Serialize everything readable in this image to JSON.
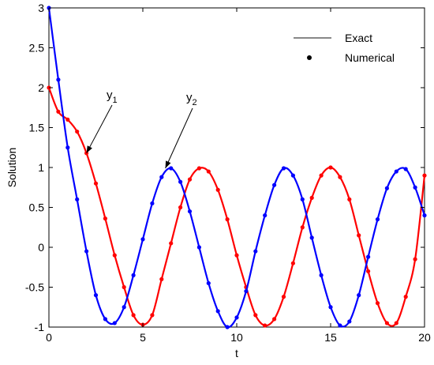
{
  "chart_data": {
    "type": "line",
    "xlabel": "t",
    "ylabel": "Solution",
    "xlim": [
      0,
      20
    ],
    "ylim": [
      -1,
      3
    ],
    "x_ticks": [
      "0",
      "5",
      "10",
      "15",
      "20"
    ],
    "y_ticks": [
      "-1",
      "-0.5",
      "0",
      "0.5",
      "1",
      "1.5",
      "2",
      "2.5",
      "3"
    ],
    "grid": false,
    "legend": {
      "placement": "top-right",
      "entries": [
        {
          "label": "Exact",
          "marker": "line"
        },
        {
          "label": "Numerical",
          "marker": "dot"
        }
      ]
    },
    "annotations": [
      {
        "text": "y",
        "subscript": "1",
        "points_to": {
          "x": 2.0,
          "y": 1.18
        }
      },
      {
        "text": "y",
        "subscript": "2",
        "points_to": {
          "x": 6.2,
          "y": 0.99
        }
      }
    ],
    "series": [
      {
        "color": "#ff0000",
        "t_start": 0,
        "t_end": 20,
        "t_step": 0.5,
        "samples": [
          [
            0,
            2.0
          ],
          [
            0.5,
            1.7
          ],
          [
            1,
            1.6
          ],
          [
            1.5,
            1.45
          ],
          [
            2,
            1.18
          ],
          [
            2.5,
            0.8
          ],
          [
            3,
            0.36
          ],
          [
            3.5,
            -0.1
          ],
          [
            4,
            -0.5
          ],
          [
            4.5,
            -0.85
          ],
          [
            5,
            -0.97
          ],
          [
            5.5,
            -0.85
          ],
          [
            6,
            -0.4
          ],
          [
            6.5,
            0.05
          ],
          [
            7,
            0.5
          ],
          [
            7.5,
            0.85
          ],
          [
            8,
            0.99
          ],
          [
            8.5,
            0.95
          ],
          [
            9,
            0.72
          ],
          [
            9.5,
            0.35
          ],
          [
            10,
            -0.1
          ],
          [
            10.5,
            -0.5
          ],
          [
            11,
            -0.85
          ],
          [
            11.5,
            -0.98
          ],
          [
            12,
            -0.9
          ],
          [
            12.5,
            -0.62
          ],
          [
            13,
            -0.2
          ],
          [
            13.5,
            0.25
          ],
          [
            14,
            0.62
          ],
          [
            14.5,
            0.9
          ],
          [
            15,
            1.0
          ],
          [
            15.5,
            0.88
          ],
          [
            16,
            0.6
          ],
          [
            16.5,
            0.15
          ],
          [
            17,
            -0.3
          ],
          [
            17.5,
            -0.7
          ],
          [
            18,
            -0.95
          ],
          [
            18.5,
            -0.95
          ],
          [
            19,
            -0.62
          ],
          [
            19.5,
            -0.15
          ],
          [
            20,
            0.9
          ]
        ]
      },
      {
        "color": "#0000ff",
        "t_start": 0,
        "t_end": 20,
        "t_step": 0.5,
        "samples": [
          [
            0,
            3.0
          ],
          [
            0.5,
            2.1
          ],
          [
            1,
            1.25
          ],
          [
            1.5,
            0.6
          ],
          [
            2,
            -0.05
          ],
          [
            2.5,
            -0.6
          ],
          [
            3,
            -0.9
          ],
          [
            3.5,
            -0.95
          ],
          [
            4,
            -0.75
          ],
          [
            4.5,
            -0.35
          ],
          [
            5,
            0.1
          ],
          [
            5.5,
            0.55
          ],
          [
            6,
            0.88
          ],
          [
            6.5,
            0.99
          ],
          [
            7,
            0.82
          ],
          [
            7.5,
            0.45
          ],
          [
            8,
            0.0
          ],
          [
            8.5,
            -0.45
          ],
          [
            9,
            -0.8
          ],
          [
            9.5,
            -1.0
          ],
          [
            10,
            -0.88
          ],
          [
            10.5,
            -0.55
          ],
          [
            11,
            -0.05
          ],
          [
            11.5,
            0.4
          ],
          [
            12,
            0.78
          ],
          [
            12.5,
            0.99
          ],
          [
            13,
            0.9
          ],
          [
            13.5,
            0.6
          ],
          [
            14,
            0.12
          ],
          [
            14.5,
            -0.35
          ],
          [
            15,
            -0.75
          ],
          [
            15.5,
            -0.98
          ],
          [
            16,
            -0.93
          ],
          [
            16.5,
            -0.6
          ],
          [
            17,
            -0.12
          ],
          [
            17.5,
            0.35
          ],
          [
            18,
            0.74
          ],
          [
            18.5,
            0.95
          ],
          [
            19,
            0.98
          ],
          [
            19.5,
            0.75
          ],
          [
            20,
            0.4
          ]
        ]
      }
    ]
  }
}
